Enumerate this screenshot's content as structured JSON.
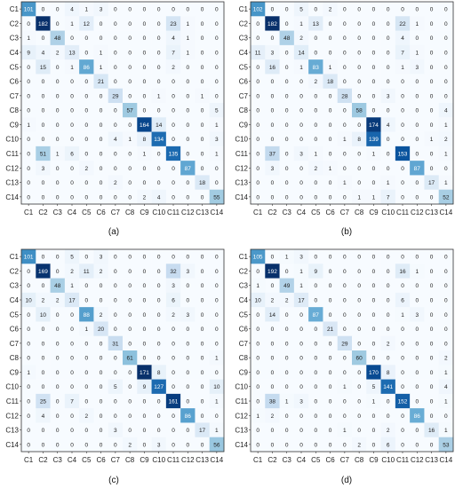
{
  "figure": {
    "axis_labels": [
      "C1",
      "C2",
      "C3",
      "C4",
      "C5",
      "C6",
      "C7",
      "C8",
      "C9",
      "C10",
      "C11",
      "C12",
      "C13",
      "C14"
    ],
    "colormap": {
      "low": "#f7fbff",
      "high": "#08306b"
    }
  },
  "chart_data": [
    {
      "type": "heatmap",
      "panel_label": "(a)",
      "categories": [
        "C1",
        "C2",
        "C3",
        "C4",
        "C5",
        "C6",
        "C7",
        "C8",
        "C9",
        "C10",
        "C11",
        "C12",
        "C13",
        "C14"
      ],
      "values": [
        [
          101,
          0,
          0,
          4,
          1,
          3,
          0,
          0,
          0,
          0,
          0,
          0,
          0,
          0
        ],
        [
          0,
          182,
          0,
          1,
          12,
          0,
          0,
          0,
          0,
          0,
          23,
          1,
          0,
          0
        ],
        [
          1,
          0,
          48,
          0,
          0,
          0,
          0,
          0,
          0,
          0,
          4,
          1,
          0,
          0
        ],
        [
          9,
          4,
          2,
          13,
          0,
          1,
          0,
          0,
          0,
          0,
          7,
          1,
          0,
          0
        ],
        [
          0,
          15,
          0,
          1,
          86,
          1,
          0,
          0,
          0,
          0,
          2,
          0,
          0,
          0
        ],
        [
          0,
          0,
          0,
          0,
          0,
          21,
          0,
          0,
          0,
          0,
          0,
          0,
          0,
          0
        ],
        [
          0,
          0,
          0,
          0,
          0,
          0,
          29,
          0,
          0,
          1,
          0,
          0,
          1,
          0
        ],
        [
          0,
          0,
          0,
          0,
          0,
          0,
          0,
          57,
          0,
          0,
          0,
          0,
          0,
          5
        ],
        [
          1,
          0,
          0,
          0,
          0,
          0,
          0,
          0,
          164,
          14,
          0,
          0,
          0,
          1
        ],
        [
          0,
          0,
          0,
          0,
          0,
          0,
          4,
          1,
          8,
          134,
          0,
          0,
          0,
          3
        ],
        [
          0,
          51,
          1,
          6,
          0,
          0,
          0,
          0,
          1,
          0,
          135,
          0,
          0,
          1
        ],
        [
          0,
          3,
          0,
          0,
          2,
          0,
          0,
          0,
          0,
          0,
          0,
          87,
          0,
          0
        ],
        [
          0,
          0,
          0,
          0,
          0,
          0,
          2,
          0,
          0,
          0,
          0,
          0,
          18,
          0
        ],
        [
          0,
          0,
          0,
          0,
          0,
          0,
          0,
          0,
          2,
          4,
          0,
          0,
          0,
          55
        ]
      ]
    },
    {
      "type": "heatmap",
      "panel_label": "(b)",
      "categories": [
        "C1",
        "C2",
        "C3",
        "C4",
        "C5",
        "C6",
        "C7",
        "C8",
        "C9",
        "C10",
        "C11",
        "C12",
        "C13",
        "C14"
      ],
      "values": [
        [
          102,
          0,
          0,
          5,
          0,
          2,
          0,
          0,
          0,
          0,
          0,
          0,
          0,
          0
        ],
        [
          0,
          182,
          0,
          1,
          13,
          0,
          0,
          0,
          0,
          0,
          22,
          1,
          0,
          0
        ],
        [
          0,
          0,
          48,
          2,
          0,
          0,
          0,
          0,
          0,
          0,
          4,
          0,
          0,
          0
        ],
        [
          11,
          3,
          0,
          14,
          0,
          0,
          0,
          0,
          0,
          0,
          7,
          1,
          0,
          0
        ],
        [
          0,
          16,
          0,
          1,
          83,
          1,
          0,
          0,
          0,
          0,
          1,
          3,
          0,
          0
        ],
        [
          0,
          0,
          0,
          0,
          2,
          18,
          0,
          0,
          0,
          0,
          0,
          0,
          0,
          0
        ],
        [
          0,
          0,
          0,
          0,
          0,
          0,
          28,
          0,
          0,
          3,
          0,
          0,
          0,
          0
        ],
        [
          0,
          0,
          0,
          0,
          0,
          0,
          0,
          58,
          0,
          0,
          0,
          0,
          0,
          4
        ],
        [
          0,
          0,
          0,
          0,
          0,
          0,
          0,
          0,
          174,
          4,
          0,
          0,
          0,
          1
        ],
        [
          0,
          0,
          0,
          0,
          0,
          0,
          1,
          8,
          139,
          0,
          0,
          0,
          1,
          2
        ],
        [
          0,
          37,
          0,
          3,
          1,
          0,
          0,
          0,
          1,
          0,
          153,
          0,
          0,
          1
        ],
        [
          0,
          3,
          0,
          0,
          2,
          1,
          0,
          0,
          0,
          0,
          0,
          87,
          0,
          0
        ],
        [
          0,
          0,
          0,
          0,
          0,
          0,
          1,
          0,
          0,
          1,
          0,
          0,
          17,
          1
        ],
        [
          0,
          0,
          0,
          0,
          0,
          0,
          0,
          1,
          1,
          7,
          0,
          0,
          0,
          52
        ]
      ]
    },
    {
      "type": "heatmap",
      "panel_label": "(c)",
      "categories": [
        "C1",
        "C2",
        "C3",
        "C4",
        "C5",
        "C6",
        "C7",
        "C8",
        "C9",
        "C10",
        "C11",
        "C12",
        "C13",
        "C14"
      ],
      "values": [
        [
          101,
          0,
          0,
          5,
          0,
          3,
          0,
          0,
          0,
          0,
          0,
          0,
          0,
          0
        ],
        [
          0,
          169,
          0,
          2,
          11,
          2,
          0,
          0,
          0,
          0,
          32,
          3,
          0,
          0
        ],
        [
          0,
          0,
          48,
          1,
          0,
          0,
          0,
          0,
          0,
          0,
          3,
          0,
          0,
          0
        ],
        [
          10,
          2,
          2,
          17,
          0,
          0,
          0,
          0,
          0,
          0,
          6,
          0,
          0,
          0
        ],
        [
          0,
          10,
          0,
          0,
          88,
          2,
          0,
          0,
          0,
          0,
          2,
          3,
          0,
          0
        ],
        [
          0,
          0,
          0,
          0,
          1,
          20,
          0,
          0,
          0,
          0,
          0,
          0,
          0,
          0
        ],
        [
          0,
          0,
          0,
          0,
          0,
          0,
          31,
          0,
          0,
          0,
          0,
          0,
          0,
          0
        ],
        [
          0,
          0,
          0,
          0,
          0,
          0,
          0,
          61,
          0,
          0,
          0,
          0,
          0,
          1
        ],
        [
          1,
          0,
          0,
          0,
          0,
          0,
          0,
          0,
          171,
          8,
          0,
          0,
          0,
          0
        ],
        [
          0,
          0,
          0,
          0,
          0,
          0,
          5,
          0,
          9,
          127,
          0,
          0,
          0,
          10
        ],
        [
          0,
          25,
          0,
          7,
          0,
          0,
          0,
          0,
          0,
          0,
          161,
          0,
          0,
          1
        ],
        [
          0,
          4,
          0,
          0,
          2,
          0,
          0,
          0,
          0,
          0,
          0,
          86,
          0,
          0
        ],
        [
          0,
          0,
          0,
          0,
          0,
          0,
          3,
          0,
          0,
          0,
          0,
          0,
          17,
          1
        ],
        [
          0,
          0,
          0,
          0,
          0,
          0,
          0,
          2,
          0,
          3,
          0,
          0,
          0,
          56
        ]
      ]
    },
    {
      "type": "heatmap",
      "panel_label": "(d)",
      "categories": [
        "C1",
        "C2",
        "C3",
        "C4",
        "C5",
        "C6",
        "C7",
        "C8",
        "C9",
        "C10",
        "C11",
        "C12",
        "C13",
        "C14"
      ],
      "values": [
        [
          105,
          0,
          1,
          3,
          0,
          0,
          0,
          0,
          0,
          0,
          0,
          0,
          0,
          0
        ],
        [
          0,
          192,
          0,
          1,
          9,
          0,
          0,
          0,
          0,
          0,
          16,
          1,
          0,
          0
        ],
        [
          1,
          0,
          49,
          1,
          0,
          0,
          0,
          0,
          0,
          0,
          0,
          0,
          0,
          0
        ],
        [
          10,
          2,
          2,
          17,
          0,
          0,
          0,
          0,
          0,
          0,
          6,
          0,
          0,
          0
        ],
        [
          0,
          14,
          0,
          0,
          87,
          0,
          0,
          0,
          0,
          0,
          1,
          3,
          0,
          0
        ],
        [
          0,
          0,
          0,
          0,
          0,
          21,
          0,
          0,
          0,
          0,
          0,
          0,
          0,
          0
        ],
        [
          0,
          0,
          0,
          0,
          0,
          0,
          29,
          0,
          0,
          2,
          0,
          0,
          0,
          0
        ],
        [
          0,
          0,
          0,
          0,
          0,
          0,
          0,
          60,
          0,
          0,
          0,
          0,
          0,
          2
        ],
        [
          0,
          0,
          0,
          0,
          0,
          0,
          0,
          0,
          170,
          8,
          0,
          0,
          0,
          1
        ],
        [
          0,
          0,
          0,
          0,
          0,
          0,
          1,
          0,
          5,
          141,
          0,
          0,
          0,
          4
        ],
        [
          0,
          38,
          1,
          3,
          0,
          0,
          0,
          0,
          1,
          0,
          152,
          0,
          0,
          1
        ],
        [
          1,
          2,
          0,
          0,
          0,
          0,
          0,
          0,
          0,
          0,
          0,
          86,
          0,
          0
        ],
        [
          0,
          0,
          0,
          0,
          0,
          0,
          1,
          0,
          0,
          2,
          0,
          0,
          16,
          1
        ],
        [
          0,
          0,
          0,
          0,
          0,
          0,
          0,
          2,
          0,
          6,
          0,
          0,
          0,
          53
        ]
      ]
    }
  ]
}
